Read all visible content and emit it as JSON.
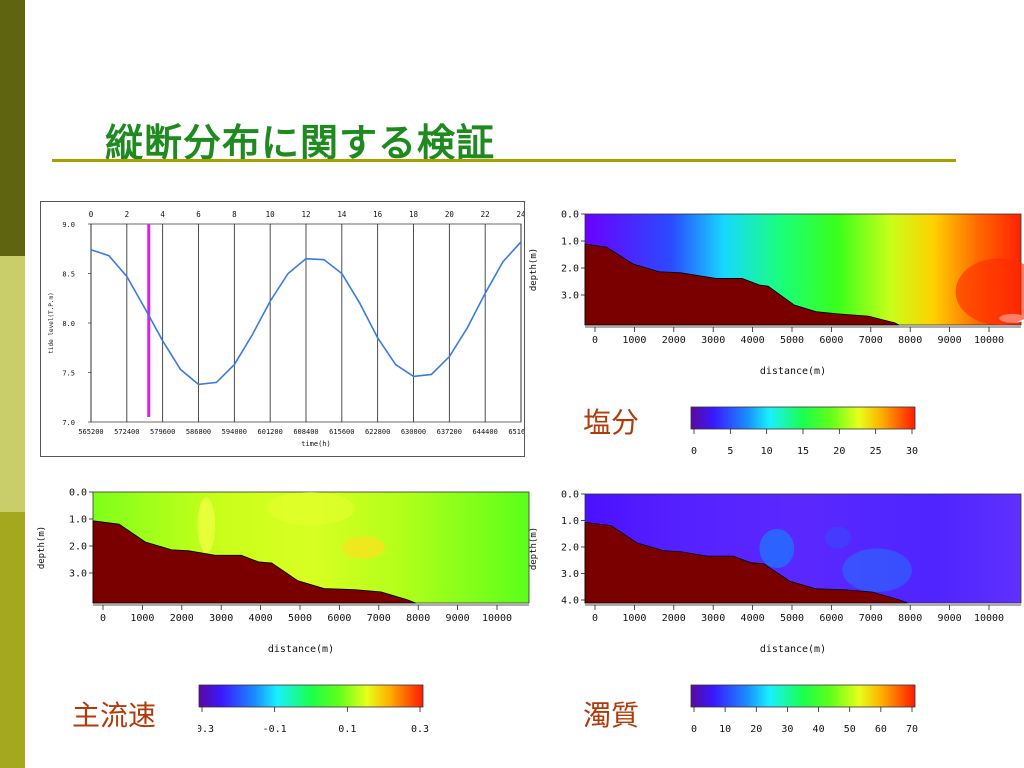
{
  "slide": {
    "title": "縦断分布に関する検証"
  },
  "tide_chart": {
    "top_ticks": [
      "0",
      "2",
      "4",
      "6",
      "8",
      "10",
      "12",
      "14",
      "16",
      "18",
      "20",
      "22",
      "24"
    ],
    "x_ticks": [
      "565200",
      "572400",
      "579600",
      "586800",
      "594000",
      "601200",
      "608400",
      "615600",
      "622800",
      "630000",
      "637200",
      "644400",
      "651600"
    ],
    "y_ticks": [
      "9.0",
      "8.5",
      "8.0",
      "7.5",
      "7.0"
    ],
    "ylabel": "tide level(T.P.m)",
    "xlabel": "time(h)"
  },
  "chart_data": [
    {
      "type": "line",
      "title": "",
      "xlabel": "time(h)",
      "ylabel": "tide level(T.P.m)",
      "ylim": [
        7.0,
        9.0
      ],
      "xlim": [
        0,
        24
      ],
      "grid": "vertical lines every 2 h",
      "series": [
        {
          "x": [
            0,
            1,
            2,
            3,
            4,
            5,
            6,
            7,
            8,
            9,
            10,
            11,
            12,
            13,
            14,
            15,
            16,
            17,
            18,
            19,
            20,
            21,
            22,
            23,
            24
          ],
          "values": [
            8.74,
            8.68,
            8.47,
            8.15,
            7.82,
            7.53,
            7.38,
            7.4,
            7.58,
            7.88,
            8.22,
            8.5,
            8.65,
            8.64,
            8.5,
            8.2,
            7.85,
            7.58,
            7.46,
            7.48,
            7.66,
            7.95,
            8.3,
            8.62,
            8.82
          ]
        }
      ],
      "marker_line_x": 3.0,
      "marker_line_color": "#e020e0"
    }
  ],
  "sections": {
    "salinity": {
      "name": "塩分",
      "depth_ticks": [
        "0.0",
        "1.0",
        "2.0",
        "3.0"
      ],
      "distance_ticks": [
        "0",
        "1000",
        "2000",
        "3000",
        "4000",
        "5000",
        "6000",
        "7000",
        "8000",
        "9000",
        "10000"
      ],
      "xlabel": "distance(m)",
      "ylabel": "depth(m)",
      "scale_ticks": [
        "0",
        "5",
        "10",
        "15",
        "20",
        "25",
        "30"
      ]
    },
    "velocity": {
      "name": "主流速",
      "depth_ticks": [
        "0.0",
        "1.0",
        "2.0",
        "3.0"
      ],
      "distance_ticks": [
        "0",
        "1000",
        "2000",
        "3000",
        "4000",
        "5000",
        "6000",
        "7000",
        "8000",
        "9000",
        "10000"
      ],
      "xlabel": "distance(m)",
      "ylabel": "depth(m)",
      "scale_ticks": [
        "-0.3",
        "-0.1",
        "0.1",
        "0.3"
      ]
    },
    "turbidity": {
      "name": "濁質",
      "depth_ticks": [
        "0.0",
        "1.0",
        "2.0",
        "3.0",
        "4.0"
      ],
      "distance_ticks": [
        "0",
        "1000",
        "2000",
        "3000",
        "4000",
        "5000",
        "6000",
        "7000",
        "8000",
        "9000",
        "10000"
      ],
      "xlabel": "distance(m)",
      "ylabel": "depth(m)",
      "scale_ticks": [
        "0",
        "10",
        "20",
        "30",
        "40",
        "50",
        "60",
        "70"
      ]
    }
  },
  "colors": {
    "band_dark": "#5e6410",
    "band_light": "#c9cd6a",
    "band_mid": "#a3a81f",
    "title": "#1f8a1f",
    "rule": "#a8a000",
    "bed": "#7a0000",
    "legend_text": "#b23a0a"
  }
}
